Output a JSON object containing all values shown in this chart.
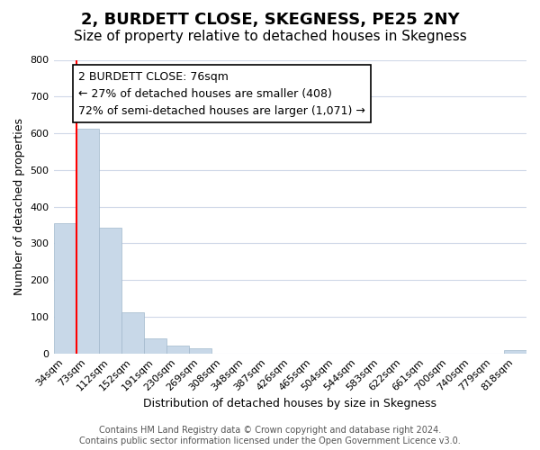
{
  "title": "2, BURDETT CLOSE, SKEGNESS, PE25 2NY",
  "subtitle": "Size of property relative to detached houses in Skegness",
  "xlabel": "Distribution of detached houses by size in Skegness",
  "ylabel": "Number of detached properties",
  "footer_lines": [
    "Contains HM Land Registry data © Crown copyright and database right 2024.",
    "Contains public sector information licensed under the Open Government Licence v3.0."
  ],
  "bins": [
    "34sqm",
    "73sqm",
    "112sqm",
    "152sqm",
    "191sqm",
    "230sqm",
    "269sqm",
    "308sqm",
    "348sqm",
    "387sqm",
    "426sqm",
    "465sqm",
    "504sqm",
    "544sqm",
    "583sqm",
    "622sqm",
    "661sqm",
    "700sqm",
    "740sqm",
    "779sqm",
    "818sqm"
  ],
  "bar_heights": [
    355,
    612,
    343,
    113,
    40,
    22,
    14,
    0,
    0,
    0,
    0,
    0,
    0,
    0,
    0,
    0,
    0,
    0,
    0,
    0,
    8
  ],
  "bar_color": "#c8d8e8",
  "bar_edge_color": "#a0b8cc",
  "vline_color": "red",
  "annotation_box_text": "2 BURDETT CLOSE: 76sqm\n← 27% of detached houses are smaller (408)\n72% of semi-detached houses are larger (1,071) →",
  "ylim": [
    0,
    800
  ],
  "yticks": [
    0,
    100,
    200,
    300,
    400,
    500,
    600,
    700,
    800
  ],
  "background_color": "#ffffff",
  "grid_color": "#d0d8e8",
  "title_fontsize": 13,
  "subtitle_fontsize": 11,
  "axis_label_fontsize": 9,
  "tick_fontsize": 8,
  "annotation_fontsize": 9,
  "footer_fontsize": 7
}
